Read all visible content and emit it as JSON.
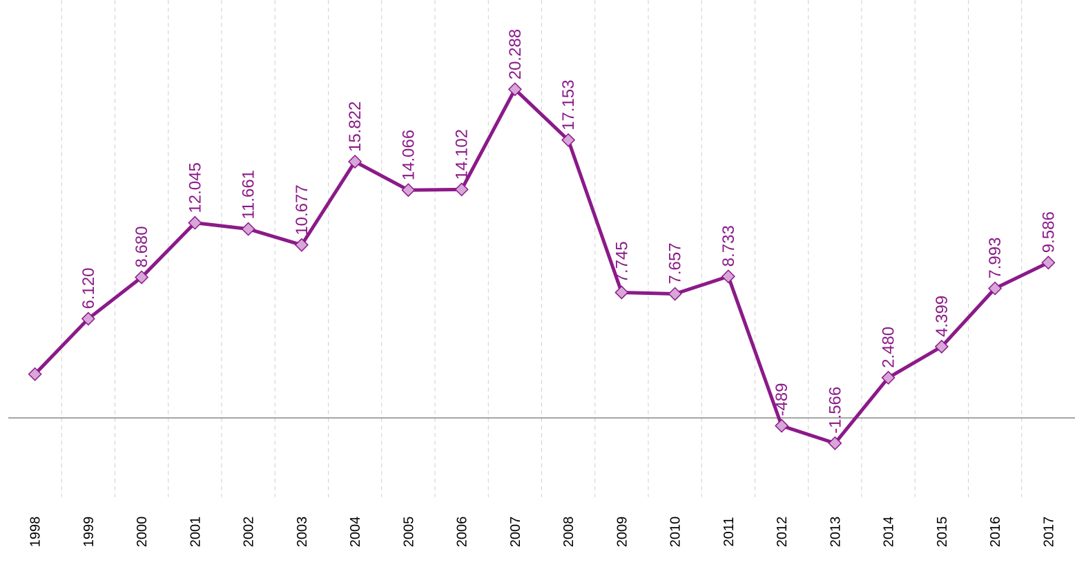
{
  "chart_data": {
    "type": "line",
    "categories": [
      "1998",
      "1999",
      "2000",
      "2001",
      "2002",
      "2003",
      "2004",
      "2005",
      "2006",
      "2007",
      "2008",
      "2009",
      "2010",
      "2011",
      "2012",
      "2013",
      "2014",
      "2015",
      "2016",
      "2017"
    ],
    "series": [
      {
        "color": "#8b1a89",
        "marker_fill": "#d8a6d8",
        "values": [
          2700,
          6120,
          8680,
          12045,
          11661,
          10677,
          15822,
          14066,
          14102,
          20288,
          17153,
          7745,
          7657,
          8733,
          -489,
          -1566,
          2480,
          4399,
          7993,
          9586
        ],
        "value_labels": [
          null,
          "6.120",
          "8.680",
          "12.045",
          "11.661",
          "10.677",
          "15.822",
          "14.066",
          "14.102",
          "20.288",
          "17.153",
          "7.745",
          "7.657",
          "8.733",
          "-489",
          "-1.566",
          "2.480",
          "4.399",
          "7.993",
          "9.586"
        ]
      }
    ],
    "ylim": [
      -4900,
      25800
    ],
    "grid": true
  }
}
